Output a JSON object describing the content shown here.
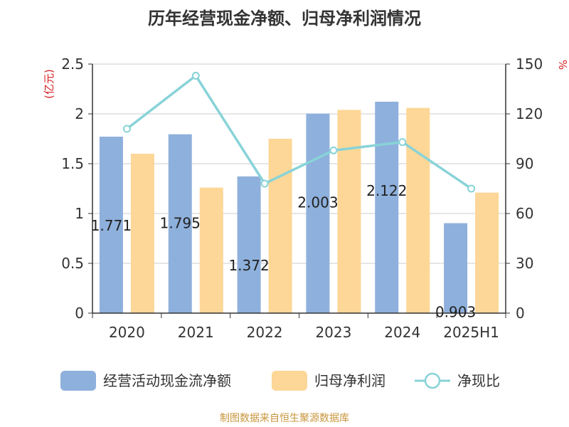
{
  "chart_data": {
    "type": "bar",
    "title": "历年经营现金净额、归母净利润情况",
    "categories": [
      "2020",
      "2021",
      "2022",
      "2023",
      "2024",
      "2025H1"
    ],
    "y_left": {
      "unit": "(亿元)",
      "ylim": [
        0,
        2.5
      ],
      "ticks": [
        "0",
        "0.5",
        "1",
        "1.5",
        "2",
        "2.5"
      ]
    },
    "y_right": {
      "unit": "%",
      "ylim": [
        0,
        150
      ],
      "ticks": [
        "0",
        "30",
        "60",
        "90",
        "120",
        "150"
      ]
    },
    "series": [
      {
        "name": "经营活动现金流净额",
        "kind": "bar",
        "axis": "left",
        "color": "#8eb0dc",
        "values": [
          1.771,
          1.795,
          1.372,
          2.003,
          2.122,
          0.903
        ],
        "labels": [
          "1.771",
          "1.795",
          "1.372",
          "2.003",
          "2.122",
          "0.903"
        ]
      },
      {
        "name": "归母净利润",
        "kind": "bar",
        "axis": "left",
        "color": "#fdd797",
        "values": [
          1.6,
          1.26,
          1.75,
          2.04,
          2.06,
          1.21
        ]
      },
      {
        "name": "净现比",
        "kind": "line",
        "axis": "right",
        "color": "#88d3d8",
        "values": [
          111,
          143,
          78,
          98,
          103,
          75
        ]
      }
    ],
    "grid": true,
    "legend_position": "bottom"
  },
  "source": "制图数据来自恒生聚源数据库",
  "colors": {
    "axis": "#333333",
    "grid": "#cccccc",
    "unit_left": "#d42020",
    "unit_right": "#d42020",
    "source": "#c8963c"
  }
}
